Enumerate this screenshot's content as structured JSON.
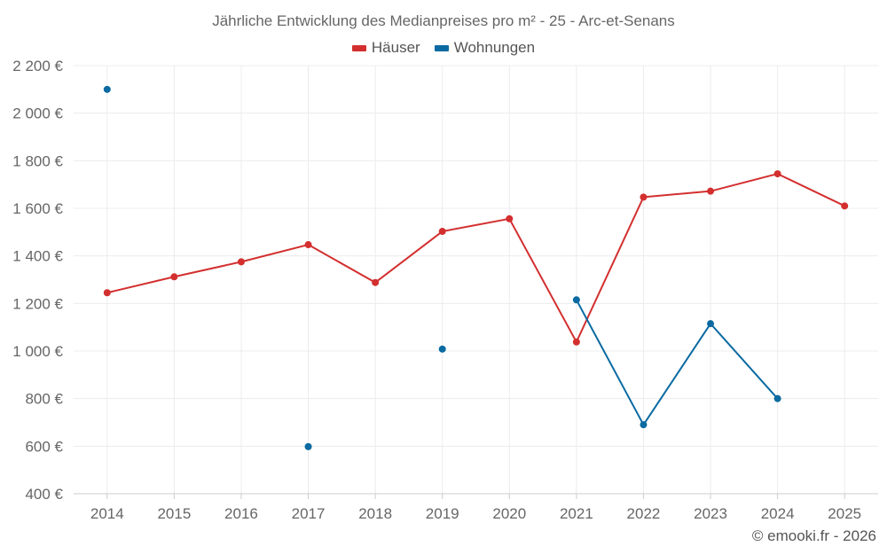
{
  "chart_data": {
    "type": "line",
    "title": "Jährliche Entwicklung des Medianpreises pro m² - 25 - Arc-et-Senans",
    "categories": [
      "2014",
      "2015",
      "2016",
      "2017",
      "2018",
      "2019",
      "2020",
      "2021",
      "2022",
      "2023",
      "2024",
      "2025"
    ],
    "series": [
      {
        "name": "Häuser",
        "color": "#d32f2f",
        "values": [
          1245,
          1312,
          1375,
          1447,
          1288,
          1503,
          1556,
          1038,
          1647,
          1672,
          1745,
          1610
        ]
      },
      {
        "name": "Wohnungen",
        "color": "#0a6aa1",
        "values": [
          2100,
          null,
          null,
          598,
          null,
          1008,
          null,
          1215,
          690,
          1115,
          800,
          null
        ]
      }
    ],
    "yticks": [
      "2 200 €",
      "2 000 €",
      "1 800 €",
      "1 600 €",
      "1 400 €",
      "1 200 €",
      "1 000 €",
      "800 €",
      "600 €",
      "400 €"
    ],
    "ytick_values": [
      2200,
      2000,
      1800,
      1600,
      1400,
      1200,
      1000,
      800,
      600,
      400
    ],
    "ylim": [
      400,
      2200
    ],
    "grid": true,
    "legend_position": "top-center",
    "xlabel": "",
    "ylabel": ""
  },
  "credit": "© emooki.fr - 2026"
}
